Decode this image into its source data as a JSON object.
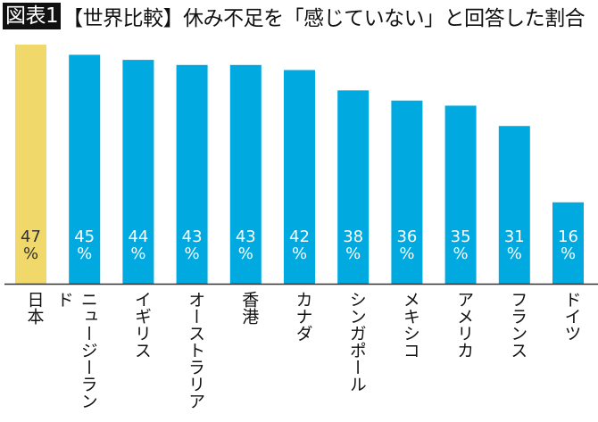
{
  "title": {
    "badge": "図表1",
    "text": "【世界比較】休み不足を「感じていない」と回答した割合"
  },
  "chart_data": {
    "type": "bar",
    "title": "【世界比較】休み不足を「感じていない」と回答した割合",
    "categories": [
      "日本",
      "ニュージーランド",
      "イギリス",
      "オーストラリア",
      "香港",
      "カナダ",
      "シンガポール",
      "メキシコ",
      "アメリカ",
      "フランス",
      "ドイツ"
    ],
    "values": [
      47,
      45,
      44,
      43,
      43,
      42,
      38,
      36,
      35,
      31,
      16
    ],
    "value_labels": [
      "47\n%",
      "45\n%",
      "44\n%",
      "43\n%",
      "43\n%",
      "42\n%",
      "38\n%",
      "36\n%",
      "35\n%",
      "31\n%",
      "16\n%"
    ],
    "unit": "%",
    "ylim": [
      0,
      47
    ],
    "grid": false,
    "colors": {
      "highlight": "#f0d86a",
      "default": "#00a9e0",
      "highlight_label": "#333333",
      "default_label": "#ffffff"
    },
    "highlight_index": 0
  }
}
